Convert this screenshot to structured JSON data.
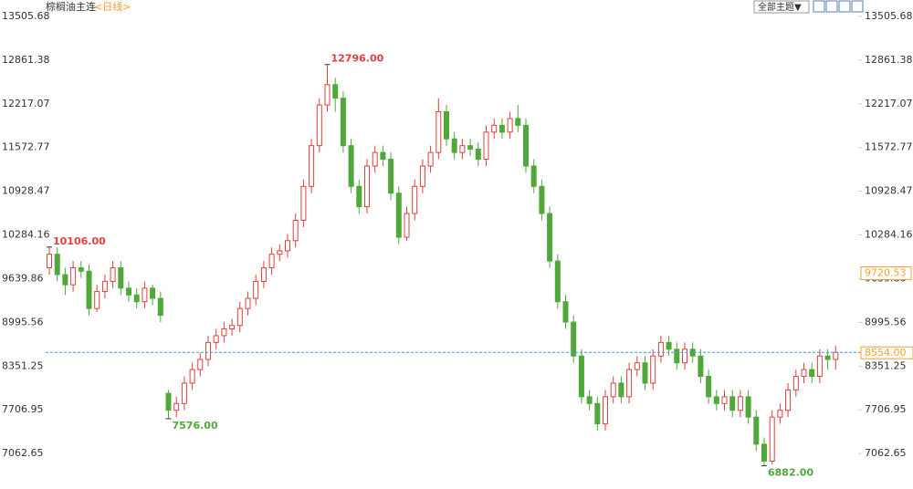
{
  "chart_data": {
    "type": "candlestick",
    "title": "棕榈油主连",
    "subtitle": "<日线>",
    "theme_button": "全部主题▼",
    "ylim": [
      6540,
      13747
    ],
    "yticks": [
      7062.65,
      7706.95,
      8351.25,
      8995.56,
      9639.86,
      10284.16,
      10928.47,
      11572.77,
      12217.07,
      12861.38,
      13505.68
    ],
    "up_color": "#e0403f",
    "down_color": "#4fa83a",
    "open": [
      9800,
      10000,
      9700,
      9550,
      9800,
      9750,
      9200,
      9450,
      9600,
      9800,
      9500,
      9400,
      9300,
      9500,
      9350,
      7950,
      7700,
      7800,
      8100,
      8300,
      8450,
      8700,
      8800,
      8900,
      8950,
      9200,
      9350,
      9600,
      9800,
      10000,
      10050,
      10200,
      10500,
      11000,
      11600,
      12200,
      12500,
      12300,
      11600,
      11000,
      10700,
      11300,
      11500,
      11400,
      10900,
      10250,
      10600,
      11000,
      11300,
      11500,
      12100,
      11700,
      11500,
      11600,
      11550,
      11400,
      11800,
      11900,
      11800,
      12000,
      11900,
      11300,
      11000,
      10600,
      9900,
      9300,
      9000,
      8500,
      7900,
      7800,
      7500,
      7900,
      8100,
      7900,
      8300,
      8400,
      8100,
      8500,
      8700,
      8600,
      8400,
      8600,
      8500,
      8200,
      7900,
      7800,
      7900,
      7700,
      7900,
      7600,
      7200,
      6950,
      7600,
      7700,
      8000,
      8200,
      8300,
      8200,
      8500,
      8450
    ],
    "high": [
      10106,
      10100,
      9800,
      9900,
      9900,
      9850,
      9550,
      9700,
      9900,
      9900,
      9600,
      9500,
      9600,
      9550,
      9450,
      8000,
      7900,
      8200,
      8400,
      8550,
      8800,
      8900,
      9000,
      9050,
      9300,
      9450,
      9700,
      9900,
      10100,
      10150,
      10300,
      10600,
      11100,
      11700,
      12300,
      12796,
      12600,
      12400,
      11700,
      11100,
      11400,
      11600,
      11600,
      11500,
      11000,
      10700,
      11100,
      11400,
      11600,
      12300,
      12200,
      11800,
      11700,
      11700,
      11650,
      11900,
      12000,
      12000,
      12100,
      12200,
      12000,
      11400,
      11100,
      10700,
      10000,
      9400,
      9100,
      8600,
      8000,
      7900,
      8000,
      8200,
      8200,
      8400,
      8500,
      8500,
      8600,
      8800,
      8800,
      8700,
      8700,
      8700,
      8600,
      8300,
      8000,
      8000,
      8000,
      8000,
      8000,
      7700,
      7300,
      7700,
      7800,
      8100,
      8300,
      8400,
      8400,
      8600,
      8600,
      8650
    ],
    "low": [
      9700,
      9600,
      9400,
      9450,
      9650,
      9100,
      9150,
      9350,
      9500,
      9400,
      9300,
      9200,
      9200,
      9250,
      9000,
      7576,
      7600,
      7700,
      8000,
      8200,
      8350,
      8600,
      8700,
      8800,
      8850,
      9100,
      9250,
      9500,
      9700,
      9900,
      9950,
      10100,
      10400,
      10900,
      11500,
      12100,
      12100,
      11500,
      10900,
      10600,
      10600,
      11200,
      11300,
      10800,
      10150,
      10200,
      10500,
      10900,
      11200,
      11400,
      11600,
      11400,
      11400,
      11450,
      11300,
      11300,
      11700,
      11700,
      11700,
      11800,
      11200,
      10900,
      10500,
      9800,
      9200,
      8900,
      8400,
      7800,
      7700,
      7400,
      7400,
      7800,
      7800,
      7800,
      8200,
      8000,
      8000,
      8400,
      8500,
      8300,
      8300,
      8400,
      8100,
      7800,
      7700,
      7700,
      7600,
      7600,
      7500,
      7100,
      6882,
      6900,
      7500,
      7600,
      7900,
      8100,
      8100,
      8100,
      8300,
      8300
    ],
    "close": [
      10000,
      9700,
      9550,
      9800,
      9750,
      9200,
      9450,
      9600,
      9800,
      9500,
      9400,
      9300,
      9500,
      9350,
      9100,
      7700,
      7800,
      8100,
      8300,
      8450,
      8700,
      8800,
      8900,
      8950,
      9200,
      9350,
      9600,
      9800,
      10000,
      10050,
      10200,
      10500,
      11000,
      11600,
      12200,
      12500,
      12300,
      11600,
      11000,
      10700,
      11300,
      11500,
      11400,
      10900,
      10250,
      10600,
      11000,
      11300,
      11500,
      12100,
      11700,
      11500,
      11600,
      11550,
      11400,
      11800,
      11900,
      11800,
      12000,
      11900,
      11300,
      11000,
      10600,
      9900,
      9300,
      9000,
      8500,
      7900,
      7800,
      7500,
      7900,
      8100,
      7900,
      8300,
      8400,
      8100,
      8500,
      8700,
      8600,
      8400,
      8600,
      8500,
      8200,
      7900,
      7800,
      7900,
      7700,
      7900,
      7600,
      7200,
      6950,
      7600,
      7700,
      8000,
      8200,
      8300,
      8200,
      8500,
      8450,
      8554
    ],
    "annotations": [
      {
        "value": 10106,
        "label": "10106.00",
        "kind": "high"
      },
      {
        "value": 12796,
        "label": "12796.00",
        "kind": "high"
      },
      {
        "value": 7576,
        "label": "7576.00",
        "kind": "low"
      },
      {
        "value": 6882,
        "label": "6882.00",
        "kind": "low"
      }
    ],
    "last_price": {
      "value": 8554,
      "label": "8554.00"
    },
    "cursor_price": 9720.53,
    "marker_color": "#f0a030"
  }
}
